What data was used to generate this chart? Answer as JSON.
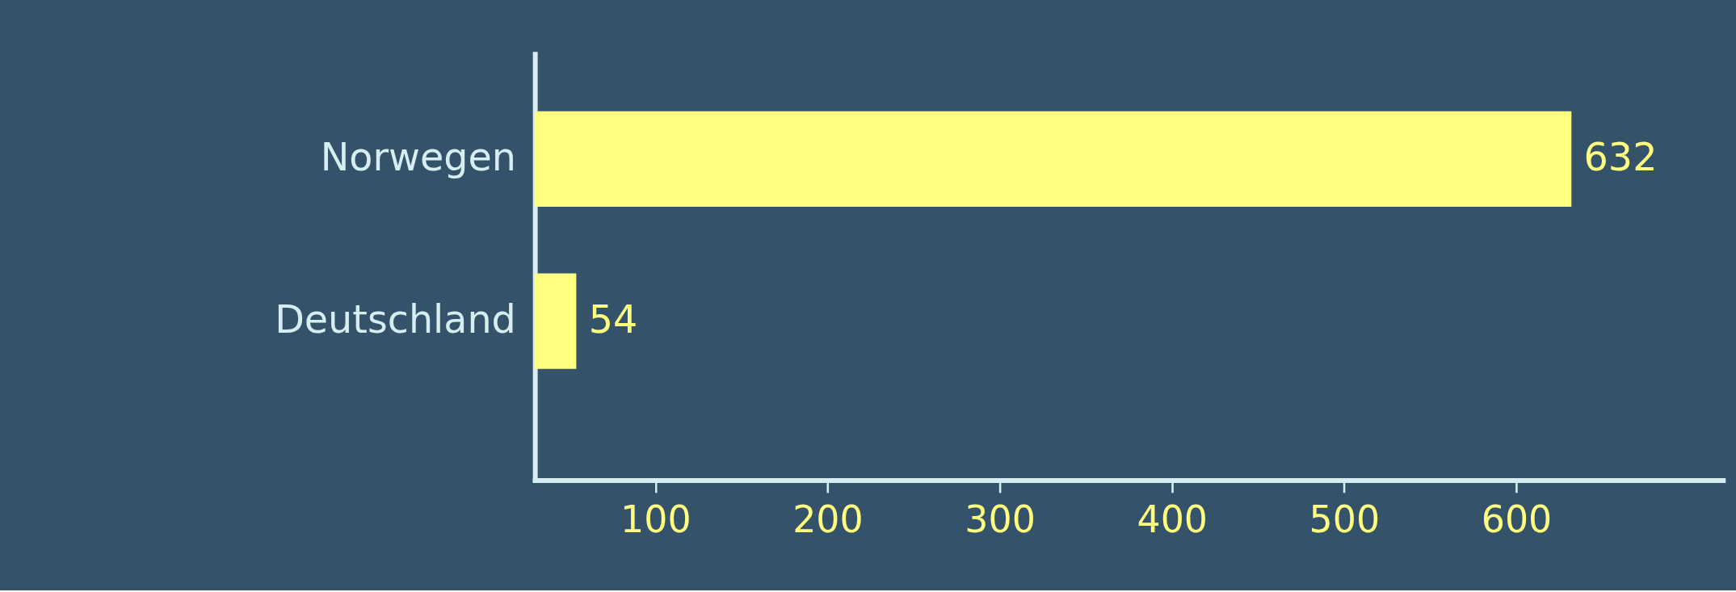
{
  "chart_data": {
    "type": "bar",
    "orientation": "horizontal",
    "categories": [
      "Norwegen",
      "Deutschland"
    ],
    "values": [
      632,
      54
    ],
    "color": "#ffff80",
    "xlim": [
      30,
      720
    ],
    "xticks": [
      100,
      200,
      300,
      400,
      500,
      600
    ],
    "data_labels": true,
    "grid": false
  }
}
